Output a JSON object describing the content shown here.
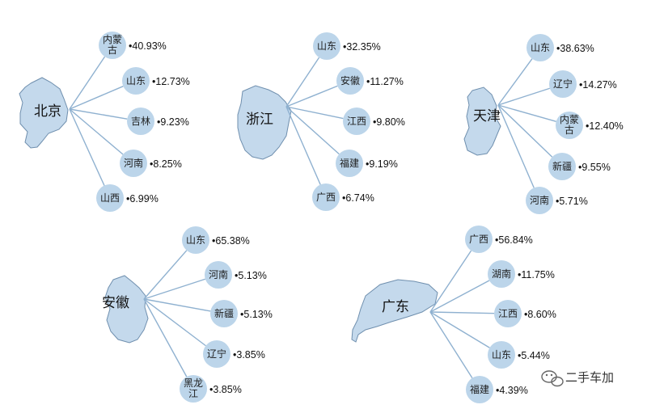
{
  "groups": [
    {
      "region": "北京",
      "targets": [
        {
          "name": [
            "内蒙",
            "古"
          ],
          "pct": "•40.93%"
        },
        {
          "name": [
            "山东"
          ],
          "pct": "•12.73%"
        },
        {
          "name": [
            "吉林"
          ],
          "pct": "•9.23%"
        },
        {
          "name": [
            "河南"
          ],
          "pct": "•8.25%"
        },
        {
          "name": [
            "山西"
          ],
          "pct": "•6.99%"
        }
      ]
    },
    {
      "region": "浙江",
      "targets": [
        {
          "name": [
            "山东"
          ],
          "pct": "•32.35%"
        },
        {
          "name": [
            "安徽"
          ],
          "pct": "•11.27%"
        },
        {
          "name": [
            "江西"
          ],
          "pct": "•9.80%"
        },
        {
          "name": [
            "福建"
          ],
          "pct": "•9.19%"
        },
        {
          "name": [
            "广西"
          ],
          "pct": "•6.74%"
        }
      ]
    },
    {
      "region": "天津",
      "targets": [
        {
          "name": [
            "山东"
          ],
          "pct": "•38.63%"
        },
        {
          "name": [
            "辽宁"
          ],
          "pct": "•14.27%"
        },
        {
          "name": [
            "内蒙",
            "古"
          ],
          "pct": "•12.40%"
        },
        {
          "name": [
            "新疆"
          ],
          "pct": "•9.55%"
        },
        {
          "name": [
            "河南"
          ],
          "pct": "•5.71%"
        }
      ]
    },
    {
      "region": "安徽",
      "targets": [
        {
          "name": [
            "山东"
          ],
          "pct": "•65.38%"
        },
        {
          "name": [
            "河南"
          ],
          "pct": "•5.13%"
        },
        {
          "name": [
            "新疆"
          ],
          "pct": "•5.13%"
        },
        {
          "name": [
            "辽宁"
          ],
          "pct": "•3.85%"
        },
        {
          "name": [
            "黑龙",
            "江"
          ],
          "pct": "•3.85%"
        }
      ]
    },
    {
      "region": "广东",
      "targets": [
        {
          "name": [
            "广西"
          ],
          "pct": "•56.84%"
        },
        {
          "name": [
            "湖南"
          ],
          "pct": "•11.75%"
        },
        {
          "name": [
            "江西"
          ],
          "pct": "•8.60%"
        },
        {
          "name": [
            "山东"
          ],
          "pct": "•5.44%"
        },
        {
          "name": [
            "福建"
          ],
          "pct": "•4.39%"
        }
      ]
    }
  ],
  "watermark": {
    "text": "二手车加",
    "icon": "wechat-icon"
  },
  "colors": {
    "node": "#bcd5ea",
    "region": "#c4d9ec",
    "line": "#8fb1d0"
  }
}
